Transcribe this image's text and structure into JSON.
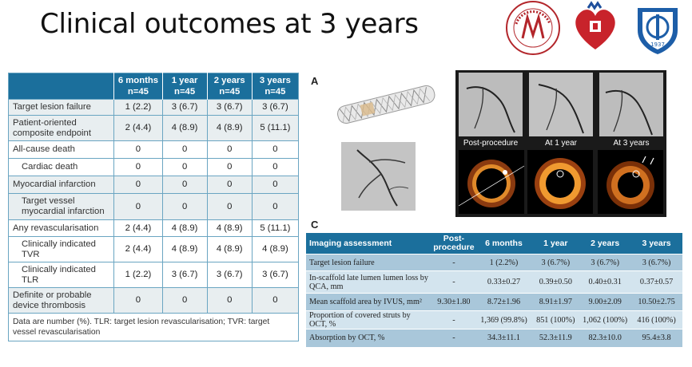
{
  "title": "Clinical outcomes at 3 years",
  "logos": [
    {
      "name": "hospital-seal",
      "text": "国家心血管病中心 · 阜外医院"
    },
    {
      "name": "heart-emblem",
      "text": ""
    },
    {
      "name": "university-shield",
      "text": "1937"
    }
  ],
  "table1": {
    "headers": [
      {
        "l1": "",
        "l2": ""
      },
      {
        "l1": "6 months",
        "l2": "n=45"
      },
      {
        "l1": "1 year",
        "l2": "n=45"
      },
      {
        "l1": "2 years",
        "l2": "n=45"
      },
      {
        "l1": "3 years",
        "l2": "n=45"
      }
    ],
    "rows": [
      {
        "label": "Target lesion failure",
        "values": [
          "1 (2.2)",
          "3 (6.7)",
          "3 (6.7)",
          "3 (6.7)"
        ]
      },
      {
        "label": "Patient-oriented composite endpoint",
        "values": [
          "2 (4.4)",
          "4 (8.9)",
          "4 (8.9)",
          "5 (11.1)"
        ]
      },
      {
        "label": "All-cause death",
        "values": [
          "0",
          "0",
          "0",
          "0"
        ]
      },
      {
        "label": "Cardiac death",
        "values": [
          "0",
          "0",
          "0",
          "0"
        ]
      },
      {
        "label": "Myocardial infarction",
        "values": [
          "0",
          "0",
          "0",
          "0"
        ]
      },
      {
        "label": "Target vessel myocardial infarction",
        "values": [
          "0",
          "0",
          "0",
          "0"
        ]
      },
      {
        "label": "Any revascularisation",
        "values": [
          "2 (4.4)",
          "4 (8.9)",
          "4 (8.9)",
          "5 (11.1)"
        ]
      },
      {
        "label": "Clinically indicated TVR",
        "values": [
          "2 (4.4)",
          "4 (8.9)",
          "4 (8.9)",
          "4 (8.9)"
        ]
      },
      {
        "label": "Clinically indicated TLR",
        "values": [
          "1 (2.2)",
          "3 (6.7)",
          "3 (6.7)",
          "3 (6.7)"
        ]
      },
      {
        "label": "Definite or probable device thrombosis",
        "values": [
          "0",
          "0",
          "0",
          "0"
        ]
      }
    ],
    "footnote": "Data are number (%). TLR: target lesion revascularisation; TVR: target vessel revascularisation"
  },
  "panels": {
    "a": "A",
    "b": "B",
    "c": "C",
    "b_captions": [
      "Post-procedure",
      "At 1 year",
      "At 3 years"
    ]
  },
  "table2": {
    "headers": [
      "Imaging assessment",
      "Post-procedure",
      "6 months",
      "1 year",
      "2 years",
      "3 years"
    ],
    "rows": [
      {
        "label": "Target lesion failure",
        "values": [
          "-",
          "1 (2.2%)",
          "3 (6.7%)",
          "3 (6.7%)",
          "3 (6.7%)"
        ]
      },
      {
        "label": "In-scaffold late lumen lumen loss by QCA, mm",
        "values": [
          "-",
          "0.33±0.27",
          "0.39±0.50",
          "0.40±0.31",
          "0.37±0.57"
        ]
      },
      {
        "label": "Mean scaffold area by IVUS, mm²",
        "values": [
          "9.30±1.80",
          "8.72±1.96",
          "8.91±1.97",
          "9.00±2.09",
          "10.50±2.75"
        ]
      },
      {
        "label": "Proportion of covered struts by OCT, %",
        "values": [
          "-",
          "1,369 (99.8%)",
          "851 (100%)",
          "1,062 (100%)",
          "416 (100%)"
        ]
      },
      {
        "label": "Absorption by OCT, %",
        "values": [
          "-",
          "34.3±11.1",
          "52.3±11.9",
          "82.3±10.0",
          "95.4±3.8"
        ]
      }
    ]
  },
  "colors": {
    "header": "#1b6f9c",
    "row_shade": "#e8eef0",
    "t2_dark": "#a9c7da",
    "t2_light": "#d3e4ee"
  }
}
